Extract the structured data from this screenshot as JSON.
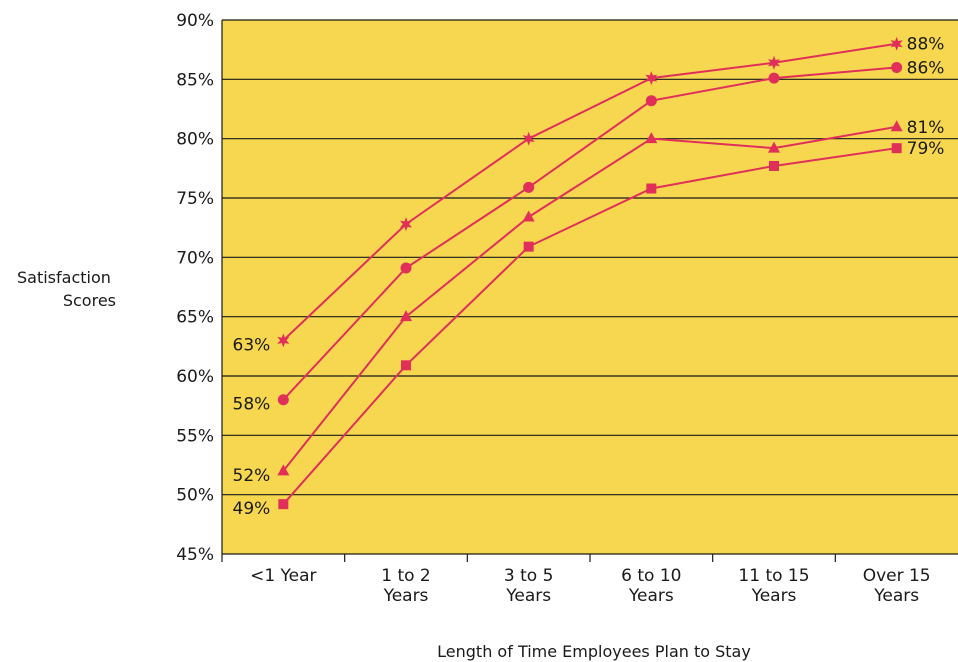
{
  "chart_data": {
    "type": "line",
    "xlabel": "Length of Time Employees Plan to Stay",
    "ylabel_lines": [
      "Satisfaction",
      "Scores"
    ],
    "categories": [
      [
        "<1 Year"
      ],
      [
        "1 to 2",
        "Years"
      ],
      [
        "3 to 5",
        "Years"
      ],
      [
        "6 to 10",
        "Years"
      ],
      [
        "11 to 15",
        "Years"
      ],
      [
        "Over 15",
        "Years"
      ]
    ],
    "ylim": [
      45,
      90
    ],
    "yticks": [
      45,
      50,
      55,
      60,
      65,
      70,
      75,
      80,
      85,
      90
    ],
    "ytick_labels": [
      "45%",
      "50%",
      "55%",
      "60%",
      "65%",
      "70%",
      "75%",
      "80%",
      "85%",
      "90%"
    ],
    "grid": true,
    "series": [
      {
        "marker": "star",
        "values": [
          63,
          72.8,
          80,
          85.1,
          86.4,
          88
        ],
        "start_label": "63%",
        "end_label": "88%"
      },
      {
        "marker": "circle",
        "values": [
          58,
          69.1,
          75.9,
          83.2,
          85.1,
          86
        ],
        "start_label": "58%",
        "end_label": "86%"
      },
      {
        "marker": "triangle",
        "values": [
          52,
          65,
          73.4,
          80,
          79.2,
          81
        ],
        "start_label": "52%",
        "end_label": "81%"
      },
      {
        "marker": "square",
        "values": [
          49.2,
          60.9,
          70.9,
          75.8,
          77.7,
          79.2
        ],
        "start_label": "49%",
        "end_label": "79%"
      }
    ]
  },
  "colors": {
    "plot_bg": "#f7d74f",
    "line": "#e0305a",
    "grid": "#1a1a1a",
    "text": "#1a1a1a"
  }
}
